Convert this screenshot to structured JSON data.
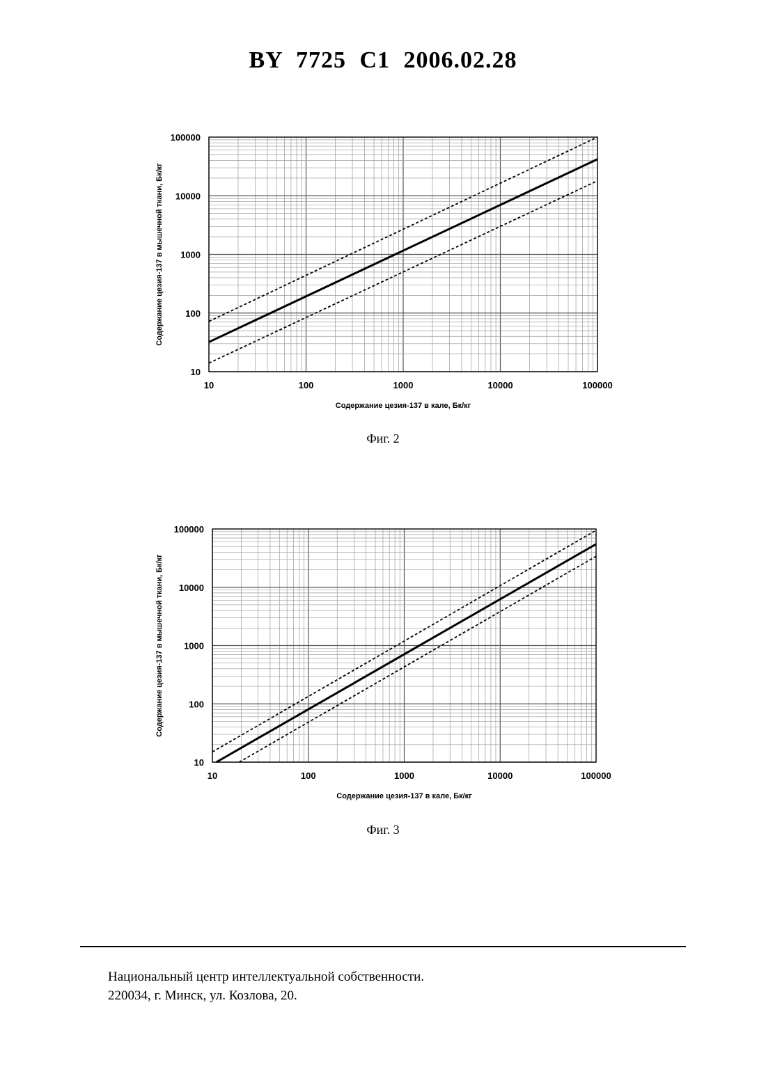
{
  "header": {
    "title": "BY  7725  C1  2006.02.28"
  },
  "chart_data": [
    {
      "type": "line",
      "scale": "log-log",
      "title": "",
      "caption": "Фиг. 2",
      "xlabel": "Содержание цезия-137 в кале, Бк/кг",
      "ylabel": "Содержание цезия-137 в мышечной ткани, Бк/кг",
      "xlim": [
        10,
        100000
      ],
      "ylim": [
        10,
        100000
      ],
      "x_ticks": [
        "10",
        "100",
        "1000",
        "10000",
        "100000"
      ],
      "y_ticks": [
        "10",
        "100",
        "1000",
        "10000",
        "100000"
      ],
      "grid": true,
      "legend": false,
      "series": [
        {
          "style": "dashed",
          "x": [
            10,
            100000
          ],
          "y": [
            72,
            100000
          ]
        },
        {
          "style": "solid",
          "x": [
            10,
            100000
          ],
          "y": [
            32,
            42000
          ]
        },
        {
          "style": "dashed",
          "x": [
            10,
            100000
          ],
          "y": [
            14,
            18000
          ]
        }
      ]
    },
    {
      "type": "line",
      "scale": "log-log",
      "title": "",
      "caption": "Фиг. 3",
      "xlabel": "Содержание цезия-137 в кале, Бк/кг",
      "ylabel": "Содержание цезия-137 в мышечной ткани, Бк/кг",
      "xlim": [
        10,
        100000
      ],
      "ylim": [
        10,
        100000
      ],
      "x_ticks": [
        "10",
        "100",
        "1000",
        "10000",
        "100000"
      ],
      "y_ticks": [
        "10",
        "100",
        "1000",
        "10000",
        "100000"
      ],
      "grid": true,
      "legend": false,
      "series": [
        {
          "style": "dashed",
          "x": [
            10,
            100000
          ],
          "y": [
            15,
            95000
          ]
        },
        {
          "style": "solid",
          "x": [
            11,
            100000
          ],
          "y": [
            10,
            55000
          ]
        },
        {
          "style": "dashed",
          "x": [
            19,
            100000
          ],
          "y": [
            10,
            34000
          ]
        }
      ]
    }
  ],
  "footer": {
    "line1": "Национальный центр интеллектуальной собственности.",
    "line2": "220034, г. Минск, ул. Козлова, 20."
  }
}
